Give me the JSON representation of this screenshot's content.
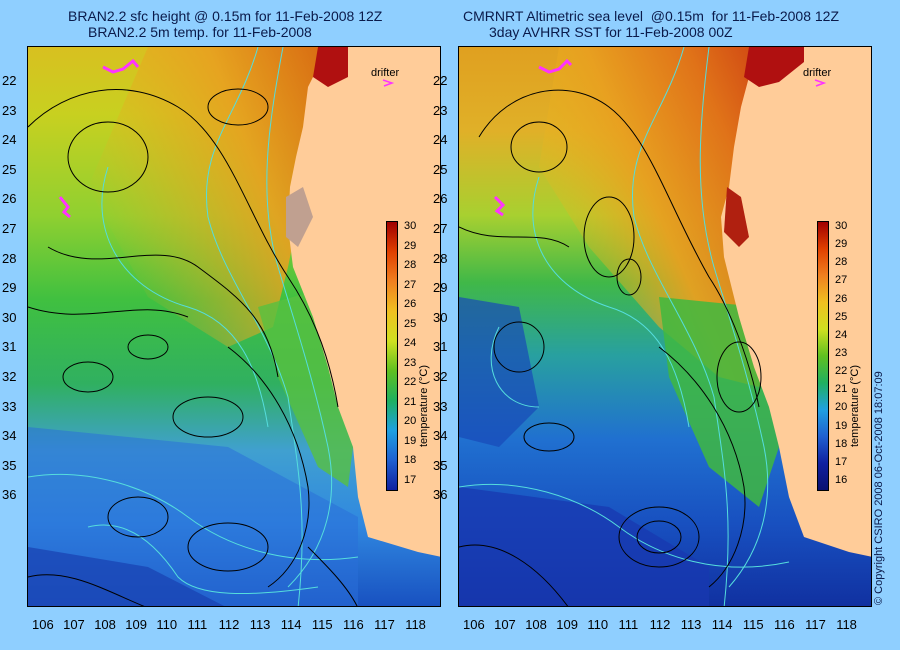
{
  "left_panel": {
    "title_line1": "BRAN2.2 sfc height @ 0.15m for 11-Feb-2008 12Z",
    "title_line2": "BRAN2.2 5m temp. for 11-Feb-2008",
    "drifter_label": "drifter",
    "colorbar_ticks": [
      "30",
      "29",
      "28",
      "27",
      "26",
      "25",
      "24",
      "23",
      "22",
      "21",
      "20",
      "19",
      "18",
      "17"
    ],
    "colorbar_title": "temperature (°C)"
  },
  "right_panel": {
    "title_line1": "CMRNRT Altimetric sea level  @0.15m  for 11-Feb-2008 12Z",
    "title_line2": "3day AVHRR SST for 11-Feb-2008 00Z",
    "drifter_label": "drifter",
    "colorbar_ticks": [
      "30",
      "29",
      "28",
      "27",
      "26",
      "25",
      "24",
      "23",
      "22",
      "21",
      "20",
      "19",
      "18",
      "17",
      "16"
    ],
    "colorbar_title": "temperature (°C)"
  },
  "y_ticks": [
    "22",
    "23",
    "24",
    "25",
    "26",
    "27",
    "28",
    "29",
    "30",
    "31",
    "32",
    "33",
    "34",
    "35",
    "36"
  ],
  "x_ticks": [
    "106",
    "107",
    "108",
    "109",
    "110",
    "111",
    "112",
    "113",
    "114",
    "115",
    "116",
    "117",
    "118"
  ],
  "copyright": "© Copyright CSIRO 2008    06-Oct-2008 18:07:09",
  "colors": {
    "background": "#8fcfff",
    "land": "#ffcc99",
    "drifter": "#ff33ff",
    "ssh_contour": "#000000",
    "bathymetry_contour": "#55dddd"
  }
}
